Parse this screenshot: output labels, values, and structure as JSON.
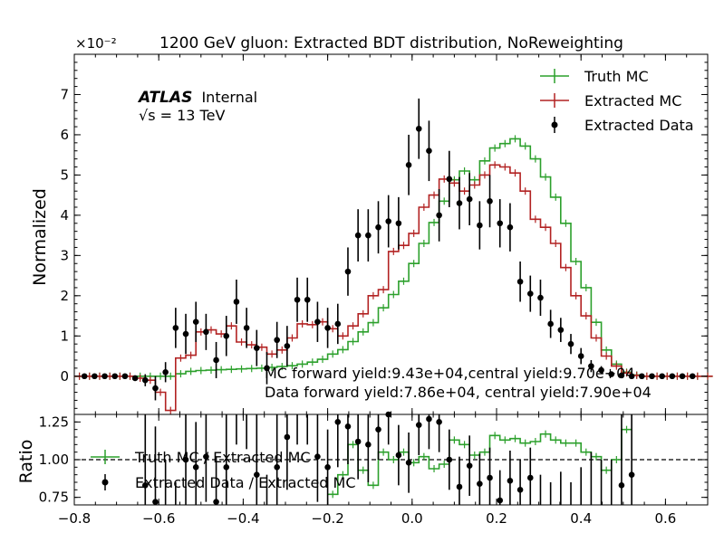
{
  "chart_data": [
    {
      "type": "histogram",
      "title": "1200 GeV gluon: Extracted BDT distribution, NoReweighting",
      "ylabel": "Normalized",
      "scale_label": "×10⁻²",
      "xlim": [
        -0.8,
        0.7
      ],
      "ylim": [
        -0.95,
        8.0
      ],
      "yticks": [
        0,
        1,
        2,
        3,
        4,
        5,
        6,
        7
      ],
      "yticklabels": [
        "0",
        "1",
        "2",
        "3",
        "4",
        "5",
        "6",
        "7"
      ],
      "experiment": "ATLAS",
      "experiment_status": "Internal",
      "energy_label": "√s = 13 TeV",
      "annotations": [
        "MC forward yield:9.43e+04,central yield:9.70e+04",
        "Data forward yield:7.86e+04, central yield:7.90e+04"
      ],
      "legend": [
        "Truth MC",
        "Extracted MC",
        "Extracted Data"
      ],
      "legend_position": "top-right",
      "series": [
        {
          "name": "Truth MC",
          "style": "step",
          "color": "#2ca02c",
          "values": [
            0,
            0,
            0,
            0,
            0,
            0,
            0,
            0,
            0,
            0,
            0.06,
            0.12,
            0.14,
            0.15,
            0.16,
            0.17,
            0.18,
            0.19,
            0.2,
            0.22,
            0.24,
            0.26,
            0.3,
            0.35,
            0.42,
            0.55,
            0.66,
            0.86,
            1.1,
            1.33,
            1.7,
            2.03,
            2.36,
            2.8,
            3.3,
            3.82,
            4.35,
            4.88,
            5.1,
            4.88,
            5.35,
            5.67,
            5.78,
            5.9,
            5.72,
            5.4,
            4.95,
            4.45,
            3.8,
            2.85,
            2.2,
            1.34,
            0.65,
            0.3,
            0.1,
            0.03,
            0,
            0,
            0,
            0,
            0,
            0,
            0
          ]
        },
        {
          "name": "Extracted MC",
          "style": "step",
          "color": "#b22222",
          "values": [
            0,
            0,
            0,
            0,
            0,
            0,
            -0.05,
            -0.1,
            -0.4,
            -0.85,
            0.45,
            0.52,
            1.1,
            1.15,
            1.05,
            1.25,
            0.85,
            0.78,
            0.72,
            0.55,
            0.65,
            0.95,
            1.3,
            1.28,
            1.35,
            1.18,
            1.0,
            1.25,
            1.55,
            2.0,
            2.15,
            3.1,
            3.25,
            3.55,
            4.2,
            4.5,
            4.9,
            4.8,
            4.6,
            4.75,
            5.0,
            5.25,
            5.2,
            5.05,
            4.6,
            3.9,
            3.7,
            3.3,
            2.7,
            2.0,
            1.5,
            0.95,
            0.5,
            0.25,
            0.08,
            0.02,
            0,
            0,
            0,
            0,
            0,
            0,
            0
          ]
        },
        {
          "name": "Extracted Data",
          "style": "errorbar",
          "color": "#000000",
          "x": [
            -0.776,
            -0.752,
            -0.728,
            -0.704,
            -0.68,
            -0.656,
            -0.632,
            -0.608,
            -0.584,
            -0.56,
            -0.536,
            -0.512,
            -0.488,
            -0.464,
            -0.44,
            -0.416,
            -0.392,
            -0.368,
            -0.344,
            -0.32,
            -0.296,
            -0.272,
            -0.248,
            -0.224,
            -0.2,
            -0.176,
            -0.152,
            -0.128,
            -0.104,
            -0.08,
            -0.056,
            -0.032,
            -0.008,
            0.016,
            0.04,
            0.064,
            0.088,
            0.112,
            0.136,
            0.16,
            0.184,
            0.208,
            0.232,
            0.256,
            0.28,
            0.304,
            0.328,
            0.352,
            0.376,
            0.4,
            0.424,
            0.448,
            0.472,
            0.496,
            0.52,
            0.544,
            0.568,
            0.592,
            0.616,
            0.64,
            0.664
          ],
          "y": [
            0,
            0,
            0,
            0,
            0,
            -0.05,
            -0.1,
            -0.3,
            0.1,
            1.2,
            1.05,
            1.35,
            1.1,
            0.4,
            1.0,
            1.85,
            1.2,
            0.7,
            0.2,
            0.9,
            0.75,
            1.9,
            1.9,
            1.35,
            1.2,
            1.3,
            2.6,
            3.5,
            3.5,
            3.7,
            3.85,
            3.8,
            5.25,
            6.15,
            5.6,
            4.0,
            4.9,
            4.3,
            4.4,
            3.75,
            4.35,
            3.8,
            3.7,
            2.35,
            2.05,
            1.95,
            1.3,
            1.15,
            0.8,
            0.5,
            0.25,
            0.15,
            0.05,
            0.02,
            0,
            0,
            0,
            0,
            0,
            0,
            0
          ],
          "yerr": [
            0.03,
            0.03,
            0.03,
            0.03,
            0.03,
            0.06,
            0.15,
            0.3,
            0.25,
            0.5,
            0.5,
            0.5,
            0.45,
            0.45,
            0.5,
            0.55,
            0.5,
            0.45,
            0.4,
            0.45,
            0.5,
            0.55,
            0.55,
            0.5,
            0.5,
            0.5,
            0.6,
            0.65,
            0.65,
            0.65,
            0.65,
            0.65,
            0.75,
            0.75,
            0.75,
            0.65,
            0.7,
            0.65,
            0.65,
            0.6,
            0.65,
            0.6,
            0.6,
            0.5,
            0.45,
            0.45,
            0.35,
            0.3,
            0.25,
            0.2,
            0.15,
            0.1,
            0.05,
            0.03,
            0.02,
            0.02,
            0.02,
            0.02,
            0.02,
            0.02,
            0.02
          ]
        }
      ]
    },
    {
      "type": "ratio",
      "ylabel": "Ratio",
      "xlim": [
        -0.8,
        0.7
      ],
      "ylim": [
        0.7,
        1.3
      ],
      "xticks": [
        -0.8,
        -0.6,
        -0.4,
        -0.2,
        0.0,
        0.2,
        0.4,
        0.6
      ],
      "xticklabels": [
        "−0.8",
        "−0.6",
        "−0.4",
        "−0.2",
        "0.0",
        "0.2",
        "0.4",
        "0.6"
      ],
      "yticks": [
        0.75,
        1.0,
        1.25
      ],
      "yticklabels": [
        "0.75",
        "1.00",
        "1.25"
      ],
      "reference_line": 1.0,
      "legend": [
        "Truth MC / Extracted MC",
        "Extracted Data / Extracted MC"
      ],
      "legend_position": "center-left",
      "series": [
        {
          "name": "Truth MC / Extracted MC",
          "style": "step",
          "color": "#2ca02c",
          "values": [
            null,
            null,
            null,
            null,
            null,
            null,
            null,
            null,
            null,
            null,
            null,
            null,
            null,
            null,
            null,
            null,
            null,
            null,
            null,
            null,
            null,
            null,
            null,
            null,
            null,
            0.77,
            0.9,
            1.1,
            0.93,
            0.83,
            1.05,
            1.0,
            1.05,
            0.98,
            1.02,
            0.94,
            0.97,
            1.13,
            1.1,
            1.03,
            1.05,
            1.16,
            1.13,
            1.14,
            1.11,
            1.12,
            1.17,
            1.13,
            1.11,
            1.11,
            1.05,
            1.02,
            0.93,
            1.0,
            1.2,
            null,
            null,
            null,
            null,
            null,
            null,
            null,
            null
          ]
        },
        {
          "name": "Extracted Data / Extracted MC",
          "style": "errorbar",
          "color": "#000000",
          "x": [
            -0.632,
            -0.608,
            -0.584,
            -0.56,
            -0.536,
            -0.512,
            -0.488,
            -0.464,
            -0.44,
            -0.416,
            -0.392,
            -0.368,
            -0.344,
            -0.32,
            -0.296,
            -0.272,
            -0.248,
            -0.224,
            -0.2,
            -0.176,
            -0.152,
            -0.128,
            -0.104,
            -0.08,
            -0.056,
            -0.032,
            -0.008,
            0.016,
            0.04,
            0.064,
            0.088,
            0.112,
            0.136,
            0.16,
            0.184,
            0.208,
            0.232,
            0.256,
            0.28,
            0.304,
            0.328,
            0.352,
            0.376,
            0.4,
            0.424,
            0.448,
            0.472,
            0.496,
            0.52
          ],
          "y": [
            0.83,
            0.72,
            0.6,
            0.55,
            1.0,
            0.95,
            1.02,
            0.72,
            0.95,
            1.5,
            1.42,
            0.9,
            0.4,
            0.95,
            1.15,
            1.45,
            1.45,
            1.02,
            0.95,
            1.25,
            1.22,
            1.12,
            1.1,
            1.2,
            1.3,
            1.03,
            0.98,
            1.23,
            1.27,
            1.25,
            1.0,
            0.82,
            0.96,
            0.84,
            0.88,
            0.73,
            0.86,
            0.8,
            0.88,
            0.65,
            0.6,
            0.62,
            0.55,
            0.6,
            0.65,
            0.5,
            0.4,
            0.83,
            0.9
          ],
          "yerr": [
            0.9,
            0.5,
            0.4,
            0.3,
            0.3,
            0.3,
            0.3,
            0.3,
            0.35,
            0.4,
            0.35,
            0.4,
            0.5,
            0.4,
            0.35,
            0.35,
            0.35,
            0.3,
            0.25,
            0.3,
            0.25,
            0.25,
            0.25,
            0.2,
            0.2,
            0.2,
            0.2,
            0.2,
            0.2,
            0.2,
            0.2,
            0.2,
            0.2,
            0.2,
            0.2,
            0.2,
            0.2,
            0.2,
            0.2,
            0.25,
            0.25,
            0.3,
            0.3,
            0.35,
            0.4,
            0.5,
            0.6,
            1.0,
            1.2
          ]
        }
      ]
    }
  ]
}
